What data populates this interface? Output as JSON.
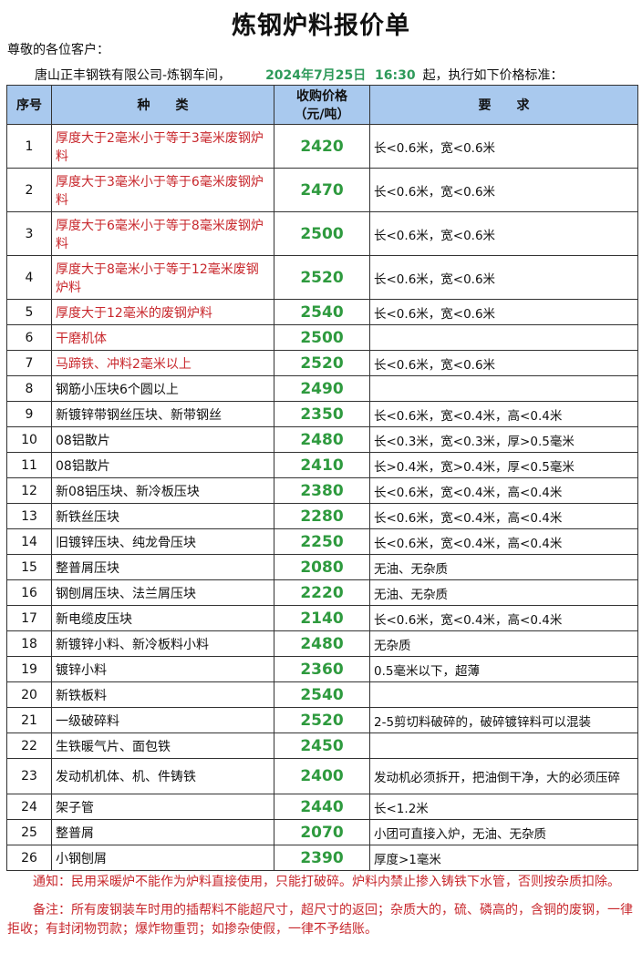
{
  "title": "炼钢炉料报价单",
  "greeting": "尊敬的各位客户：",
  "intro": {
    "company": "唐山正丰钢铁有限公司-炼钢车间，",
    "datetime": "2024年7月25日  16:30",
    "suffix": "起，执行如下价格标准："
  },
  "headers": {
    "no": "序号",
    "kind": "种　　类",
    "price_l1": "收购价格",
    "price_l2": "（元/吨）",
    "req": "要　　求"
  },
  "colors": {
    "header_bg": "#a9c9ee",
    "price": "#2e9a3e",
    "highlight": "#c8282d"
  },
  "rows": [
    {
      "no": "1",
      "kind": "厚度大于2毫米小于等于3毫米废钢炉料",
      "price": "2420",
      "req": "长<0.6米，宽<0.6米",
      "red": true,
      "size": "tall"
    },
    {
      "no": "2",
      "kind": "厚度大于3毫米小于等于6毫米废钢炉料",
      "price": "2470",
      "req": "长<0.6米，宽<0.6米",
      "red": true,
      "size": "tall"
    },
    {
      "no": "3",
      "kind": "厚度大于6毫米小于等于8毫米废钢炉料",
      "price": "2500",
      "req": "长<0.6米，宽<0.6米",
      "red": true,
      "size": "tall"
    },
    {
      "no": "4",
      "kind": "厚度大于8毫米小于等于12毫米废钢炉料",
      "price": "2520",
      "req": "长<0.6米，宽<0.6米",
      "red": true,
      "size": "tall"
    },
    {
      "no": "5",
      "kind": "厚度大于12毫米的废钢炉料",
      "price": "2540",
      "req": "长<0.6米，宽<0.6米",
      "red": true,
      "size": "norm"
    },
    {
      "no": "6",
      "kind": "干磨机体",
      "price": "2500",
      "req": "",
      "red": true,
      "size": "norm"
    },
    {
      "no": "7",
      "kind": "马蹄铁、冲料2毫米以上",
      "price": "2520",
      "req": "长<0.6米，宽<0.6米",
      "red": true,
      "size": "norm"
    },
    {
      "no": "8",
      "kind": "钢筋小压块6个圆以上",
      "price": "2490",
      "req": "",
      "red": false,
      "size": "norm"
    },
    {
      "no": "9",
      "kind": "新镀锌带钢丝压块、新带钢丝",
      "price": "2350",
      "req": "长<0.6米，宽<0.4米，高<0.4米",
      "red": false,
      "size": "norm"
    },
    {
      "no": "10",
      "kind": "08铝散片",
      "price": "2480",
      "req": "长<0.3米，宽<0.3米，厚>0.5毫米",
      "red": false,
      "size": "norm"
    },
    {
      "no": "11",
      "kind": "08铝散片",
      "price": "2410",
      "req": "长>0.4米，宽>0.4米，厚<0.5毫米",
      "red": false,
      "size": "norm"
    },
    {
      "no": "12",
      "kind": "新08铝压块、新冷板压块",
      "price": "2380",
      "req": "长<0.6米，宽<0.4米，高<0.4米",
      "red": false,
      "size": "norm"
    },
    {
      "no": "13",
      "kind": "新铁丝压块",
      "price": "2280",
      "req": "长<0.6米，宽<0.4米，高<0.4米",
      "red": false,
      "size": "norm"
    },
    {
      "no": "14",
      "kind": "旧镀锌压块、纯龙骨压块",
      "price": "2250",
      "req": "长<0.6米，宽<0.4米，高<0.4米",
      "red": false,
      "size": "norm"
    },
    {
      "no": "15",
      "kind": "整普屑压块",
      "price": "2080",
      "req": "无油、无杂质",
      "red": false,
      "size": "norm"
    },
    {
      "no": "16",
      "kind": "钢刨屑压块、法兰屑压块",
      "price": "2220",
      "req": "无油、无杂质",
      "red": false,
      "size": "norm"
    },
    {
      "no": "17",
      "kind": "新电缆皮压块",
      "price": "2140",
      "req": "长<0.6米，宽<0.4米，高<0.4米",
      "red": false,
      "size": "norm"
    },
    {
      "no": "18",
      "kind": "新镀锌小料、新冷板料小料",
      "price": "2480",
      "req": "无杂质",
      "red": false,
      "size": "norm"
    },
    {
      "no": "19",
      "kind": "镀锌小料",
      "price": "2360",
      "req": "0.5毫米以下，超薄",
      "red": false,
      "size": "norm"
    },
    {
      "no": "20",
      "kind": "新铁板料",
      "price": "2540",
      "req": "",
      "red": false,
      "size": "norm"
    },
    {
      "no": "21",
      "kind": "一级破碎料",
      "price": "2520",
      "req": "2-5剪切料破碎的，破碎镀锌料可以混装",
      "red": false,
      "size": "norm"
    },
    {
      "no": "22",
      "kind": "生铁暖气片、面包铁",
      "price": "2450",
      "req": "",
      "red": false,
      "size": "norm"
    },
    {
      "no": "23",
      "kind": "发动机机体、机、件铸铁",
      "price": "2400",
      "req": "发动机必须拆开，把油倒干净，大的必须压碎",
      "red": false,
      "size": "med"
    },
    {
      "no": "24",
      "kind": "架子管",
      "price": "2440",
      "req": "长<1.2米",
      "red": false,
      "size": "norm"
    },
    {
      "no": "25",
      "kind": "整普屑",
      "price": "2070",
      "req": "小团可直接入炉，无油、无杂质",
      "red": false,
      "size": "norm"
    },
    {
      "no": "26",
      "kind": "小钢刨屑",
      "price": "2390",
      "req": "厚度>1毫米",
      "red": false,
      "size": "norm"
    }
  ],
  "notice": "通知：民用采暖炉不能作为炉料直接使用，只能打破碎。炉料内禁止掺入铸铁下水管，否则按杂质扣除。",
  "remark": "备注：所有废钢装车时用的插帮料不能超尺寸，超尺寸的返回；杂质大的，硫、磷高的，含铜的废钢，一律拒收；有封闭物罚款；爆炸物重罚；如掺杂使假，一律不予结账。"
}
